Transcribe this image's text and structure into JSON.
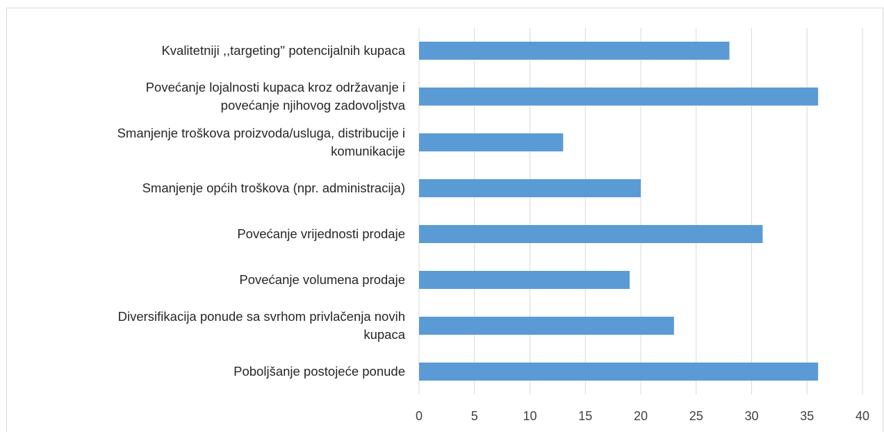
{
  "chart_data": {
    "type": "bar",
    "orientation": "horizontal",
    "categories": [
      "Kvalitetniji ,,targeting'' potencijalnih kupaca",
      "Povećanje lojalnosti kupaca kroz održavanje i\npovećanje njihovog zadovoljstva",
      "Smanjenje troškova proizvoda/usluga, distribucije i\nkomunikacije",
      "Smanjenje općih troškova (npr. administracija)",
      "Povećanje vrijednosti prodaje",
      "Povećanje volumena prodaje",
      "Diversifikacija ponude sa svrhom privlačenja novih\nkupaca",
      "Poboljšanje postojeće ponude"
    ],
    "values": [
      28,
      36,
      13,
      20,
      31,
      19,
      23,
      36
    ],
    "color": "#5b9bd5",
    "xlim": [
      0,
      40
    ],
    "xticks": [
      0,
      5,
      10,
      15,
      20,
      25,
      30,
      35,
      40
    ],
    "grid": true
  }
}
